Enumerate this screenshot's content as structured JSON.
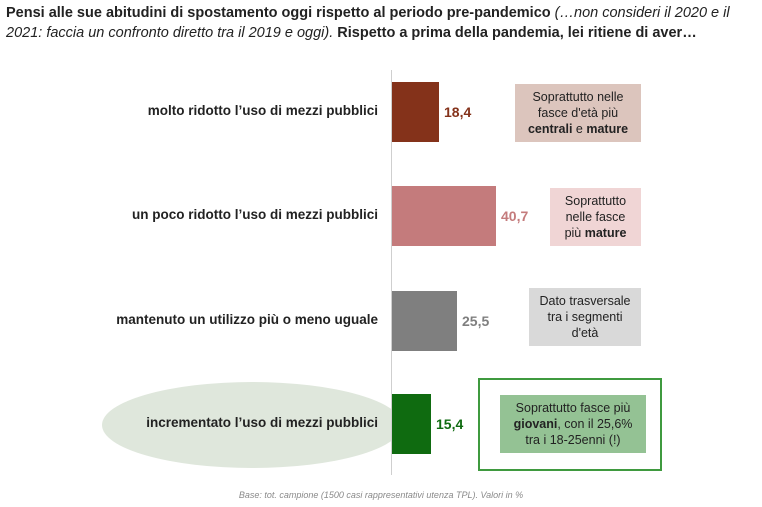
{
  "title": {
    "part1": "Pensi alle sue abitudini di spostamento oggi rispetto al periodo pre-pandemico",
    "part2": "(…non consideri il 2020 e il 2021: faccia un confronto diretto tra il 2019 e oggi).",
    "part3": "Rispetto a prima della pandemia, lei ritiene di aver…"
  },
  "chart_data": {
    "type": "bar",
    "orientation": "horizontal",
    "categories": [
      "molto ridotto l’uso di mezzi pubblici",
      "un poco ridotto l’uso di mezzi pubblici",
      "mantenuto un utilizzo più o meno uguale",
      "incrementato l’uso di mezzi pubblici"
    ],
    "values": [
      18.4,
      40.7,
      25.5,
      15.4
    ],
    "value_labels": [
      "18,4",
      "40,7",
      "25,5",
      "15,4"
    ],
    "colors": [
      "#84321a",
      "#c47b7c",
      "#7f7f7f",
      "#0f6b10"
    ],
    "label_colors": [
      "#84321a",
      "#c47b7c",
      "#7f7f7f",
      "#0f6b10"
    ],
    "xlim": [
      0,
      45
    ],
    "grid": false
  },
  "notes": [
    {
      "lines": [
        [
          {
            "t": "Soprattutto nelle",
            "b": false
          }
        ],
        [
          {
            "t": "fasce d'età più",
            "b": false
          }
        ],
        [
          {
            "t": "centrali",
            "b": true
          },
          {
            "t": " e ",
            "b": false
          },
          {
            "t": "mature",
            "b": true
          }
        ]
      ],
      "bg": "#dcc5bd"
    },
    {
      "lines": [
        [
          {
            "t": "Soprattutto",
            "b": false
          }
        ],
        [
          {
            "t": "nelle fasce",
            "b": false
          }
        ],
        [
          {
            "t": "più ",
            "b": false
          },
          {
            "t": "mature",
            "b": true
          }
        ]
      ],
      "bg": "#f0d5d5"
    },
    {
      "lines": [
        [
          {
            "t": "Dato trasversale",
            "b": false
          }
        ],
        [
          {
            "t": "tra i segmenti",
            "b": false
          }
        ],
        [
          {
            "t": "d'età",
            "b": false
          }
        ]
      ],
      "bg": "#d9d9d9"
    },
    {
      "lines": [
        [
          {
            "t": "Soprattutto fasce più",
            "b": false
          }
        ],
        [
          {
            "t": "giovani",
            "b": true
          },
          {
            "t": ", con il 25,6%",
            "b": false
          }
        ],
        [
          {
            "t": "tra i 18-25enni (!)",
            "b": false
          }
        ]
      ],
      "bg": "#94c294"
    }
  ],
  "footnote": "Base: tot. campione (1500 casi rappresentativi utenza TPL). Valori in %"
}
